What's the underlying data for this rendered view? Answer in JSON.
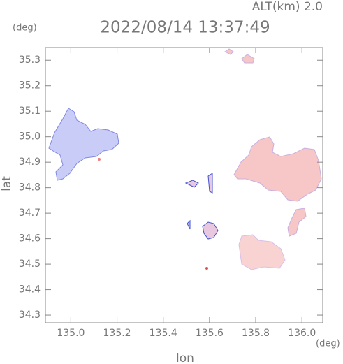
{
  "chart_data": {
    "type": "map",
    "subtitle": "ALT(km) 2.0",
    "title": "2022/08/14 13:37:49",
    "x_label": "lon",
    "y_label": "lat",
    "x_unit": "(deg)",
    "y_unit": "(deg)",
    "xlim": [
      134.89,
      136.09
    ],
    "xticks": [
      {
        "value": 135.0,
        "label": "135.0"
      },
      135.2,
      135.4,
      135.6,
      135.8,
      {
        "value": 136.0,
        "label": "136.0"
      }
    ],
    "ylim": [
      34.27,
      35.35
    ],
    "yticks": [
      34.3,
      34.4,
      34.5,
      34.6,
      34.7,
      34.8,
      34.9,
      {
        "value": 35.0,
        "label": "35.0"
      },
      35.1,
      35.2,
      35.3
    ]
  }
}
